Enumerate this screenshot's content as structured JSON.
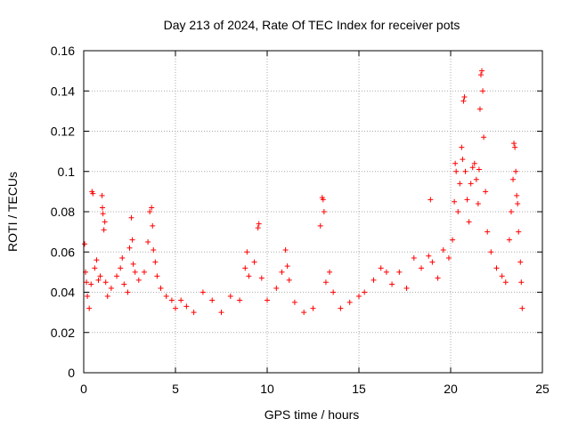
{
  "chart_data": {
    "type": "scatter",
    "title": "Day 213 of 2024, Rate Of TEC Index for receiver pots",
    "xlabel": "GPS time / hours",
    "ylabel": "ROTI / TECUs",
    "xlim": [
      0,
      25
    ],
    "ylim": [
      0,
      0.16
    ],
    "xticks": [
      0,
      5,
      10,
      15,
      20,
      25
    ],
    "xtick_labels": [
      "0",
      "5",
      "10",
      "15",
      "20",
      "25"
    ],
    "yticks": [
      0,
      0.02,
      0.04,
      0.06,
      0.08,
      0.1,
      0.12,
      0.14,
      0.16
    ],
    "ytick_labels": [
      "0",
      "0.02",
      "0.04",
      "0.06",
      "0.08",
      "0.1",
      "0.12",
      "0.14",
      "0.16"
    ],
    "grid": true,
    "marker": "plus",
    "color": "#ff0000",
    "series": [
      {
        "name": "ROTI",
        "points": [
          [
            0.05,
            0.064
          ],
          [
            0.1,
            0.05
          ],
          [
            0.15,
            0.045
          ],
          [
            0.2,
            0.038
          ],
          [
            0.3,
            0.032
          ],
          [
            0.4,
            0.044
          ],
          [
            0.45,
            0.09
          ],
          [
            0.5,
            0.089
          ],
          [
            0.6,
            0.052
          ],
          [
            0.7,
            0.056
          ],
          [
            0.8,
            0.046
          ],
          [
            0.9,
            0.048
          ],
          [
            1.0,
            0.088
          ],
          [
            1.02,
            0.082
          ],
          [
            1.05,
            0.079
          ],
          [
            1.1,
            0.071
          ],
          [
            1.15,
            0.075
          ],
          [
            1.2,
            0.045
          ],
          [
            1.3,
            0.038
          ],
          [
            1.5,
            0.042
          ],
          [
            1.8,
            0.048
          ],
          [
            2.0,
            0.052
          ],
          [
            2.1,
            0.057
          ],
          [
            2.2,
            0.044
          ],
          [
            2.4,
            0.04
          ],
          [
            2.5,
            0.062
          ],
          [
            2.6,
            0.077
          ],
          [
            2.65,
            0.066
          ],
          [
            2.7,
            0.054
          ],
          [
            2.8,
            0.05
          ],
          [
            3.0,
            0.046
          ],
          [
            3.3,
            0.05
          ],
          [
            3.5,
            0.065
          ],
          [
            3.6,
            0.08
          ],
          [
            3.7,
            0.082
          ],
          [
            3.75,
            0.073
          ],
          [
            3.8,
            0.061
          ],
          [
            3.9,
            0.055
          ],
          [
            4.0,
            0.048
          ],
          [
            4.2,
            0.042
          ],
          [
            4.5,
            0.038
          ],
          [
            4.8,
            0.036
          ],
          [
            5.0,
            0.032
          ],
          [
            5.3,
            0.036
          ],
          [
            5.6,
            0.033
          ],
          [
            6.0,
            0.03
          ],
          [
            6.5,
            0.04
          ],
          [
            7.0,
            0.036
          ],
          [
            7.5,
            0.03
          ],
          [
            8.0,
            0.038
          ],
          [
            8.5,
            0.036
          ],
          [
            8.8,
            0.052
          ],
          [
            8.9,
            0.06
          ],
          [
            9.0,
            0.048
          ],
          [
            9.3,
            0.055
          ],
          [
            9.5,
            0.072
          ],
          [
            9.55,
            0.074
          ],
          [
            9.7,
            0.047
          ],
          [
            10.0,
            0.036
          ],
          [
            10.5,
            0.042
          ],
          [
            10.8,
            0.05
          ],
          [
            11.0,
            0.061
          ],
          [
            11.1,
            0.053
          ],
          [
            11.2,
            0.046
          ],
          [
            11.5,
            0.035
          ],
          [
            12.0,
            0.03
          ],
          [
            12.5,
            0.032
          ],
          [
            12.9,
            0.073
          ],
          [
            13.0,
            0.087
          ],
          [
            13.05,
            0.086
          ],
          [
            13.1,
            0.08
          ],
          [
            13.2,
            0.045
          ],
          [
            13.4,
            0.05
          ],
          [
            13.6,
            0.04
          ],
          [
            14.0,
            0.032
          ],
          [
            14.5,
            0.035
          ],
          [
            15.0,
            0.038
          ],
          [
            15.3,
            0.04
          ],
          [
            15.8,
            0.046
          ],
          [
            16.2,
            0.052
          ],
          [
            16.5,
            0.05
          ],
          [
            16.8,
            0.044
          ],
          [
            17.2,
            0.05
          ],
          [
            17.6,
            0.042
          ],
          [
            18.0,
            0.057
          ],
          [
            18.4,
            0.052
          ],
          [
            18.8,
            0.058
          ],
          [
            18.9,
            0.086
          ],
          [
            19.0,
            0.055
          ],
          [
            19.3,
            0.047
          ],
          [
            19.6,
            0.061
          ],
          [
            19.9,
            0.057
          ],
          [
            20.1,
            0.066
          ],
          [
            20.2,
            0.085
          ],
          [
            20.25,
            0.104
          ],
          [
            20.3,
            0.1
          ],
          [
            20.4,
            0.08
          ],
          [
            20.5,
            0.094
          ],
          [
            20.6,
            0.112
          ],
          [
            20.65,
            0.106
          ],
          [
            20.7,
            0.135
          ],
          [
            20.75,
            0.137
          ],
          [
            20.8,
            0.1
          ],
          [
            20.9,
            0.086
          ],
          [
            21.0,
            0.075
          ],
          [
            21.1,
            0.094
          ],
          [
            21.2,
            0.102
          ],
          [
            21.3,
            0.104
          ],
          [
            21.4,
            0.096
          ],
          [
            21.5,
            0.084
          ],
          [
            21.55,
            0.101
          ],
          [
            21.6,
            0.131
          ],
          [
            21.65,
            0.148
          ],
          [
            21.7,
            0.15
          ],
          [
            21.75,
            0.14
          ],
          [
            21.8,
            0.117
          ],
          [
            21.9,
            0.09
          ],
          [
            22.0,
            0.07
          ],
          [
            22.2,
            0.06
          ],
          [
            22.5,
            0.052
          ],
          [
            22.8,
            0.048
          ],
          [
            23.0,
            0.045
          ],
          [
            23.2,
            0.066
          ],
          [
            23.3,
            0.08
          ],
          [
            23.4,
            0.096
          ],
          [
            23.45,
            0.114
          ],
          [
            23.5,
            0.112
          ],
          [
            23.55,
            0.1
          ],
          [
            23.6,
            0.088
          ],
          [
            23.65,
            0.084
          ],
          [
            23.7,
            0.07
          ],
          [
            23.8,
            0.055
          ],
          [
            23.85,
            0.045
          ],
          [
            23.9,
            0.032
          ]
        ]
      }
    ]
  }
}
